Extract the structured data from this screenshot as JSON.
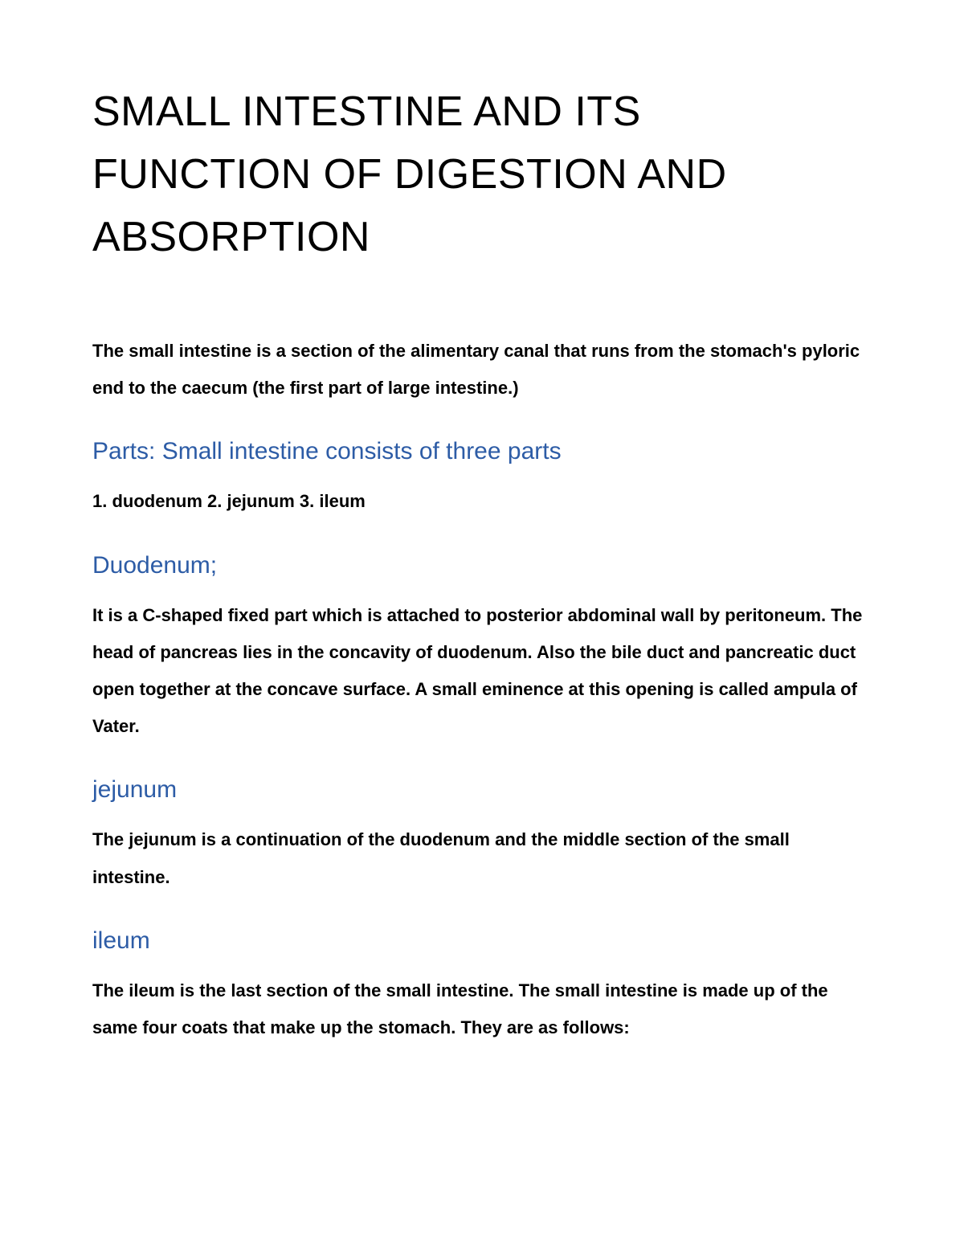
{
  "document": {
    "title": "SMALL INTESTINE AND ITS FUNCTION OF DIGESTION AND ABSORPTION",
    "intro": "The small intestine is a section of the alimentary canal that runs from the stomach's pyloric end to the caecum (the first part of large intestine.)",
    "sections": [
      {
        "heading": "Parts: Small intestine consists of three parts",
        "body": " 1. duodenum 2. jejunum 3. ileum"
      },
      {
        "heading": "Duodenum;",
        "body": " It is a C-shaped fixed part which is attached to posterior abdominal wall by peritoneum. The head of pancreas lies in the concavity of duodenum. Also the bile duct and pancreatic duct open together at the concave surface. A small eminence at this opening is called ampula of Vater."
      },
      {
        "heading": "jejunum",
        "body": "The jejunum is a continuation of the duodenum and the middle section of the small intestine."
      },
      {
        "heading": "ileum",
        "body": "The ileum is the last section of the small intestine. The small intestine is made up of the same four coats that make up the stomach. They are as follows:"
      }
    ],
    "colors": {
      "heading_color": "#2d5ca6",
      "text_color": "#000000",
      "background_color": "#ffffff"
    },
    "typography": {
      "title_fontsize": 52,
      "heading_fontsize": 30,
      "body_fontsize": 22,
      "title_weight": 400,
      "heading_weight": 400,
      "body_weight": 600
    }
  }
}
